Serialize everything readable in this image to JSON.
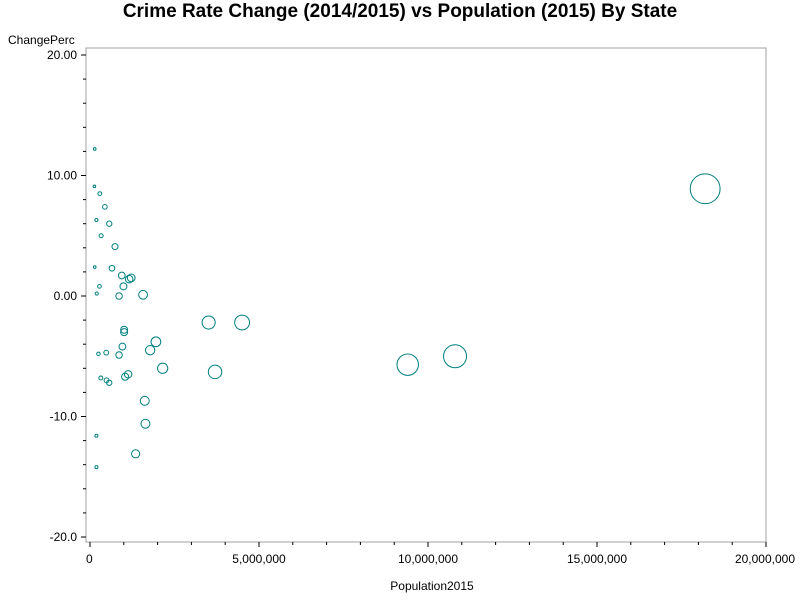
{
  "chart_data": {
    "type": "scatter",
    "title": "Crime Rate Change (2014/2015) vs Population (2015) By State",
    "xlabel": "Population2015",
    "ylabel": "ChangePerc",
    "xlim": [
      0,
      20000000
    ],
    "ylim": [
      -20,
      20
    ],
    "x_ticks": [
      0,
      5000000,
      10000000,
      15000000,
      20000000
    ],
    "x_tick_labels": [
      "0",
      "5,000,000",
      "10,000,000",
      "15,000,000",
      "20,000,000"
    ],
    "y_ticks": [
      -20,
      -10,
      0,
      10,
      20
    ],
    "y_tick_labels": [
      "-20.0",
      "-10.0",
      "0.00",
      "10.00",
      "20.00"
    ],
    "grid": false,
    "legend": false,
    "marker": "open circle sized by population",
    "marker_color": "#007f7f",
    "points": [
      {
        "x": 140000,
        "y": 12.2
      },
      {
        "x": 130000,
        "y": 9.1
      },
      {
        "x": 290000,
        "y": 8.5
      },
      {
        "x": 440000,
        "y": 7.4
      },
      {
        "x": 190000,
        "y": 6.3
      },
      {
        "x": 570000,
        "y": 6.0
      },
      {
        "x": 330000,
        "y": 5.0
      },
      {
        "x": 740000,
        "y": 4.1
      },
      {
        "x": 140000,
        "y": 2.4
      },
      {
        "x": 650000,
        "y": 2.3
      },
      {
        "x": 940000,
        "y": 1.7
      },
      {
        "x": 1160000,
        "y": 1.4
      },
      {
        "x": 1220000,
        "y": 1.5
      },
      {
        "x": 990000,
        "y": 0.8
      },
      {
        "x": 280000,
        "y": 0.8
      },
      {
        "x": 200000,
        "y": 0.2
      },
      {
        "x": 860000,
        "y": 0.0
      },
      {
        "x": 1570000,
        "y": 0.1
      },
      {
        "x": 1010000,
        "y": -2.8
      },
      {
        "x": 1010000,
        "y": -3.0
      },
      {
        "x": 3510000,
        "y": -2.2
      },
      {
        "x": 4500000,
        "y": -2.2
      },
      {
        "x": 1950000,
        "y": -3.8
      },
      {
        "x": 960000,
        "y": -4.2
      },
      {
        "x": 1780000,
        "y": -4.5
      },
      {
        "x": 250000,
        "y": -4.8
      },
      {
        "x": 480000,
        "y": -4.7
      },
      {
        "x": 860000,
        "y": -4.9
      },
      {
        "x": 9400000,
        "y": -5.7
      },
      {
        "x": 10800000,
        "y": -5.0
      },
      {
        "x": 2150000,
        "y": -6.0
      },
      {
        "x": 3700000,
        "y": -6.3
      },
      {
        "x": 1130000,
        "y": -6.5
      },
      {
        "x": 1040000,
        "y": -6.7
      },
      {
        "x": 320000,
        "y": -6.8
      },
      {
        "x": 490000,
        "y": -7.0
      },
      {
        "x": 570000,
        "y": -7.2
      },
      {
        "x": 1620000,
        "y": -8.7
      },
      {
        "x": 1640000,
        "y": -10.6
      },
      {
        "x": 190000,
        "y": -11.6
      },
      {
        "x": 1350000,
        "y": -13.1
      },
      {
        "x": 190000,
        "y": -14.2
      },
      {
        "x": 18200000,
        "y": 8.9
      }
    ]
  }
}
